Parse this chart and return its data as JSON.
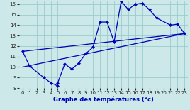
{
  "xlabel": "Graphe des températures (°c)",
  "bg_color": "#cce8e8",
  "line_color": "#0000bb",
  "grid_color": "#99cccc",
  "xlim": [
    -0.5,
    23.5
  ],
  "ylim": [
    8,
    16.3
  ],
  "xticks": [
    0,
    1,
    2,
    3,
    4,
    5,
    6,
    7,
    8,
    9,
    10,
    11,
    12,
    13,
    14,
    15,
    16,
    17,
    18,
    19,
    20,
    21,
    22,
    23
  ],
  "yticks": [
    8,
    9,
    10,
    11,
    12,
    13,
    14,
    15,
    16
  ],
  "line1_x": [
    0,
    1,
    3,
    4,
    5,
    5,
    6,
    7,
    8,
    9,
    10,
    11,
    12,
    13,
    14,
    15,
    16,
    17,
    18,
    19,
    21,
    22,
    23
  ],
  "line1_y": [
    11.5,
    10.1,
    9.0,
    8.5,
    8.2,
    8.5,
    10.3,
    9.8,
    10.4,
    11.3,
    11.9,
    14.3,
    14.3,
    12.4,
    16.3,
    15.5,
    16.0,
    16.1,
    15.5,
    14.7,
    14.0,
    14.1,
    13.2
  ],
  "line2_x": [
    0,
    23
  ],
  "line2_y": [
    10.0,
    13.2
  ],
  "line3_x": [
    0,
    23
  ],
  "line3_y": [
    11.5,
    13.2
  ]
}
